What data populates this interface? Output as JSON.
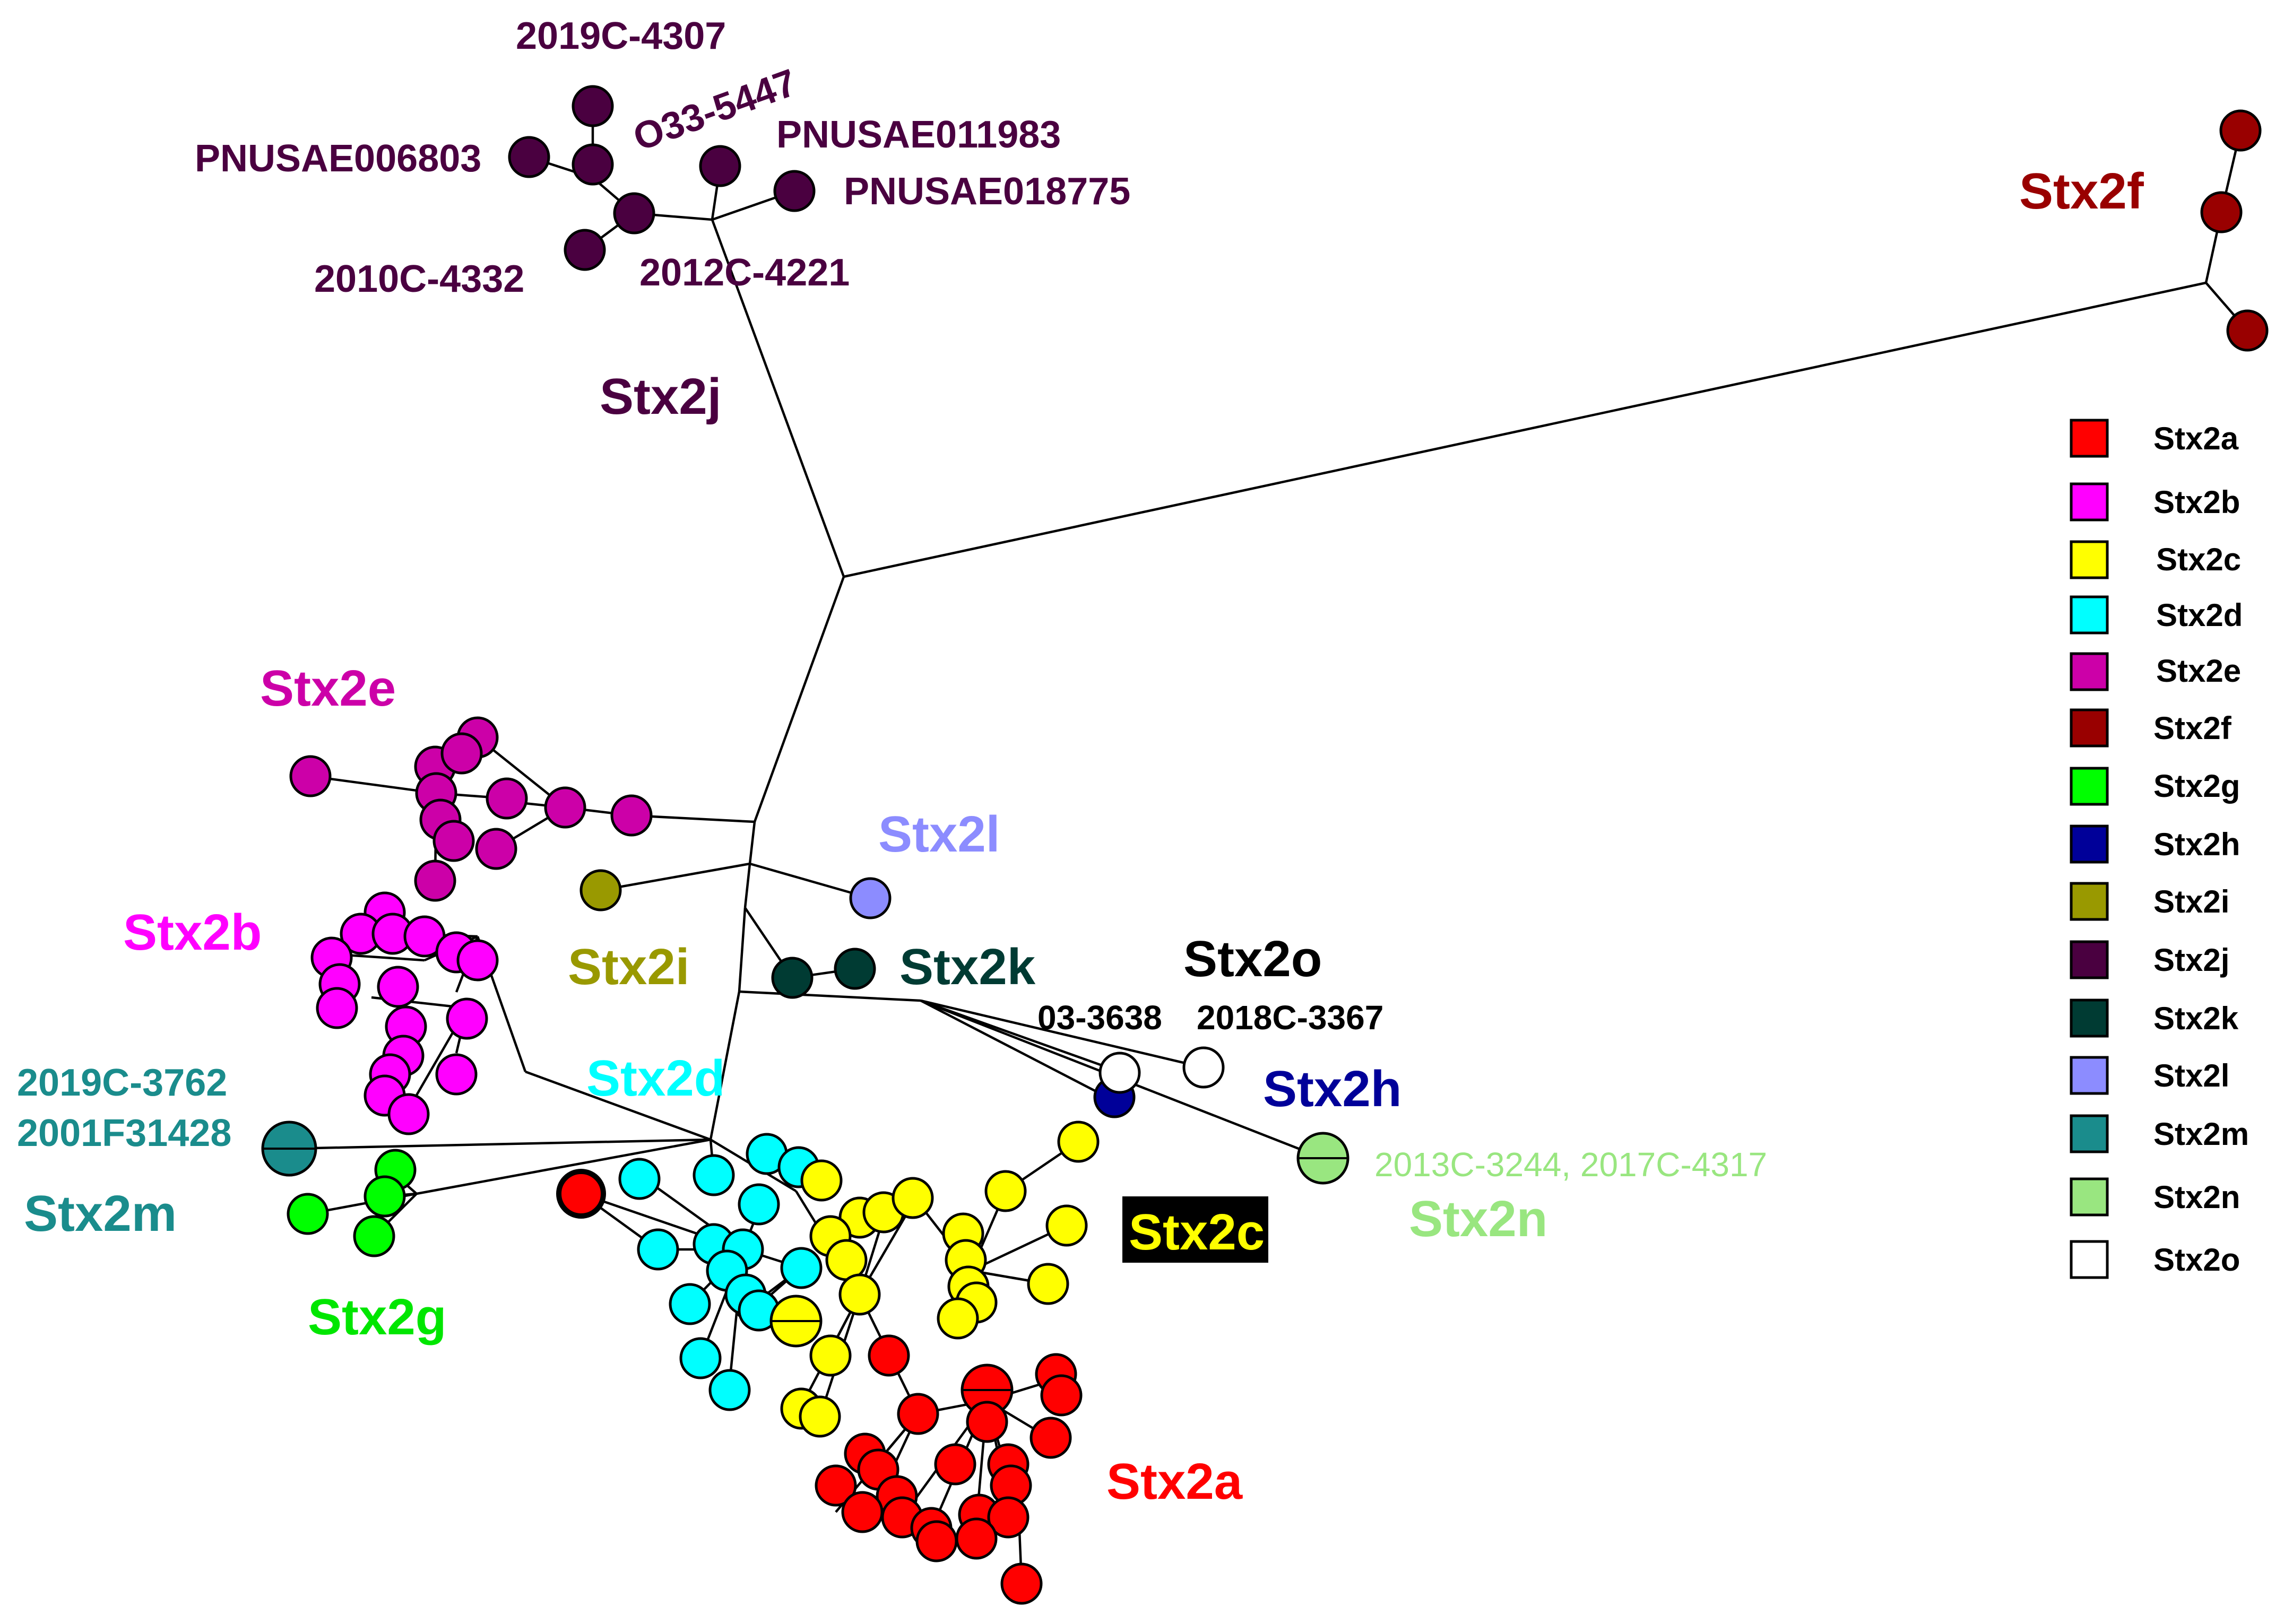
{
  "colors": {
    "Stx2a": "#ff0000",
    "Stx2b": "#ff00ff",
    "Stx2c": "#ffff00",
    "Stx2d": "#00ffff",
    "Stx2e": "#cc00a8",
    "Stx2f": "#990000",
    "Stx2g": "#00ff00",
    "Stx2h": "#000099",
    "Stx2i": "#999900",
    "Stx2j": "#4a0040",
    "Stx2k": "#003b33",
    "Stx2l": "#8c8cff",
    "Stx2m": "#1a8c8c",
    "Stx2n": "#99e680",
    "Stx2o": "#ffffff"
  },
  "label_colors": {
    "Stx2a": "#ff0000",
    "Stx2b": "#ff00ff",
    "Stx2c": "#000000",
    "Stx2d": "#00ffff",
    "Stx2e": "#cc00a8",
    "Stx2f": "#990000",
    "Stx2g": "#00e600",
    "Stx2h": "#000099",
    "Stx2i": "#999900",
    "Stx2j": "#4a0040",
    "Stx2k": "#003b33",
    "Stx2l": "#8c8cff",
    "Stx2m": "#1a8c8c",
    "Stx2n": "#99e680",
    "Stx2o": "#000000"
  },
  "cluster_labels": {
    "Stx2a": "Stx2a",
    "Stx2b": "Stx2b",
    "Stx2c": "Stx2c",
    "Stx2d": "Stx2d",
    "Stx2e": "Stx2e",
    "Stx2f": "Stx2f",
    "Stx2g": "Stx2g",
    "Stx2h": "Stx2h",
    "Stx2i": "Stx2i",
    "Stx2j": "Stx2j",
    "Stx2k": "Stx2k",
    "Stx2l": "Stx2l",
    "Stx2m": "Stx2m",
    "Stx2n": "Stx2n",
    "Stx2o": "Stx2o"
  },
  "strain_labels": {
    "s2019C_4307": "2019C-4307",
    "O33_5447": "O33-5447",
    "PNUSAE006803": "PNUSAE006803",
    "PNUSAE011983": "PNUSAE011983",
    "PNUSAE018775": "PNUSAE018775",
    "s2010C_4332": "2010C-4332",
    "s2012C_4221": "2012C-4221",
    "s03_3638": "03-3638",
    "s2018C_3367": "2018C-3367",
    "s2019C_3762": "2019C-3762",
    "s2001F31428": "2001F31428",
    "stx2n_strains": "2013C-3244, 2017C-4317"
  },
  "legend": {
    "items": [
      {
        "key": "Stx2a",
        "label": "Stx2a",
        "color": "#ff0000"
      },
      {
        "key": "Stx2b",
        "label": "Stx2b",
        "color": "#ff00ff"
      },
      {
        "key": "Stx2c",
        "label": "Stx2c",
        "color": "#ffff00"
      },
      {
        "key": "Stx2d",
        "label": "Stx2d",
        "color": "#00ffff"
      },
      {
        "key": "Stx2e",
        "label": "Stx2e",
        "color": "#cc00a8"
      },
      {
        "key": "Stx2f",
        "label": "Stx2f",
        "color": "#990000"
      },
      {
        "key": "Stx2g",
        "label": "Stx2g",
        "color": "#00ff00"
      },
      {
        "key": "Stx2h",
        "label": "Stx2h",
        "color": "#000099"
      },
      {
        "key": "Stx2i",
        "label": "Stx2i",
        "color": "#999900"
      },
      {
        "key": "Stx2j",
        "label": "Stx2j",
        "color": "#4a0040"
      },
      {
        "key": "Stx2k",
        "label": "Stx2k",
        "color": "#003b33"
      },
      {
        "key": "Stx2l",
        "label": "Stx2l",
        "color": "#8c8cff"
      },
      {
        "key": "Stx2m",
        "label": "Stx2m",
        "color": "#1a8c8c"
      },
      {
        "key": "Stx2n",
        "label": "Stx2n",
        "color": "#99e680"
      },
      {
        "key": "Stx2o",
        "label": "Stx2o",
        "color": "#ffffff"
      }
    ]
  }
}
